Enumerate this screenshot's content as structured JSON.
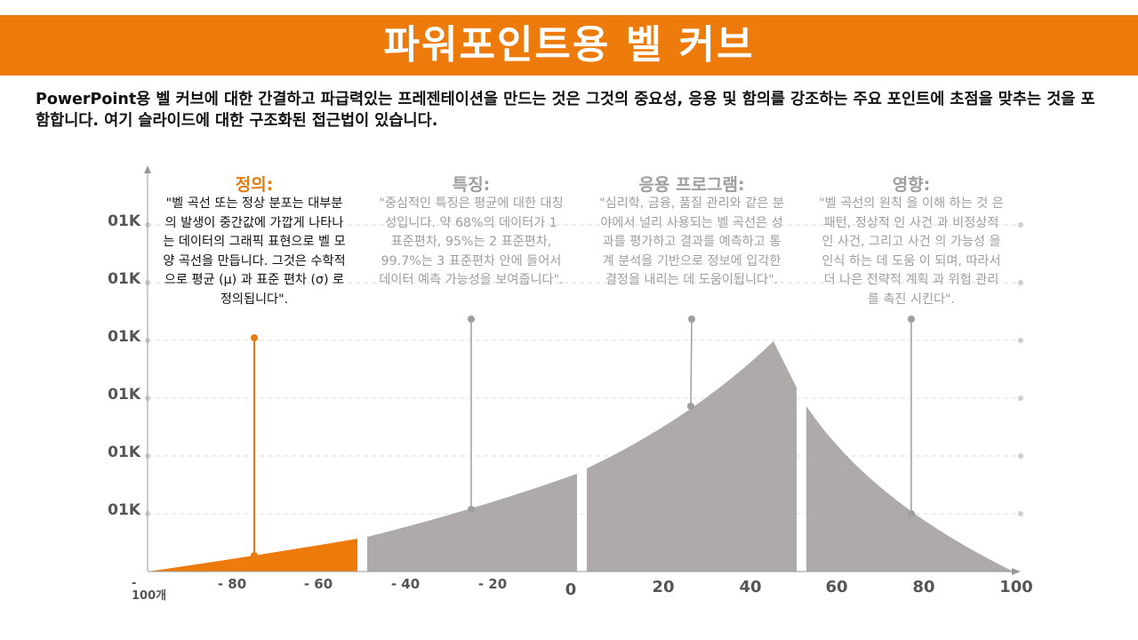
{
  "title": "파워포인트용 벨 커브",
  "intro": "PowerPoint용 벨 커브에 대한 간결하고 파급력있는 프레젠테이션을 만드는 것은 그것의 중요성, 응용 및 함의를 강조하는 주요 포인트에 초점을 맞추는 것을 포함합니다. 여기 슬라이드에 대한 구조화된 접근법이 있습니다.",
  "colors": {
    "accent": "#ED7B0C",
    "curve_grey": "#AEAAA9",
    "text_grey": "#9E9E9E"
  },
  "y_axis_labels": [
    "01K",
    "01K",
    "01K",
    "01K",
    "01K",
    "01K"
  ],
  "x_axis_first_label": {
    "line1": "-",
    "line2": "100개"
  },
  "x_axis_labels": [
    "- 80",
    "- 60",
    "- 40",
    "- 20",
    "0",
    "20",
    "40",
    "60",
    "80",
    "100"
  ],
  "columns": [
    {
      "title": "정의:",
      "body": "\"벨 곡선 또는 정상 분포는 대부분의 발생이 중간값에 가깝게 나타나는 데이터의 그래픽 표현으로 벨 모양 곡선을 만듭니다. 그것은 수학적으로 평균 (μ) 과 표준 편차 (σ) 로 정의됩니다\"."
    },
    {
      "title": "특징:",
      "body": "\"중심적인 특징은 평균에 대한 대칭성입니다. 약 68%의 데이터가 1 표준편차, 95%는 2 표준편차, 99.7%는 3 표준편차 안에 들어서 데이터 예측 가능성을 보여줍니다\"."
    },
    {
      "title": "응용 프로그램:",
      "body": "\"심리학, 금융, 품질 관리와 같은 분야에서 널리 사용되는 벨 곡선은 성과를 평가하고 결과를 예측하고 통계 분석을 기반으로 정보에 입각한 결정을 내리는 데 도움이됩니다\"."
    },
    {
      "title": "영향:",
      "body": "\"벨 곡선의 원칙 을 이해 하는 것 은 패턴, 정상적 인 사건 과 비정상적 인 사건, 그리고 사건 의 가능성 을 인식 하는 데 도움 이 되며, 따라서 더 나은 전략적 계획 과 위험 관리 를 촉진 시킨다\"."
    }
  ]
}
